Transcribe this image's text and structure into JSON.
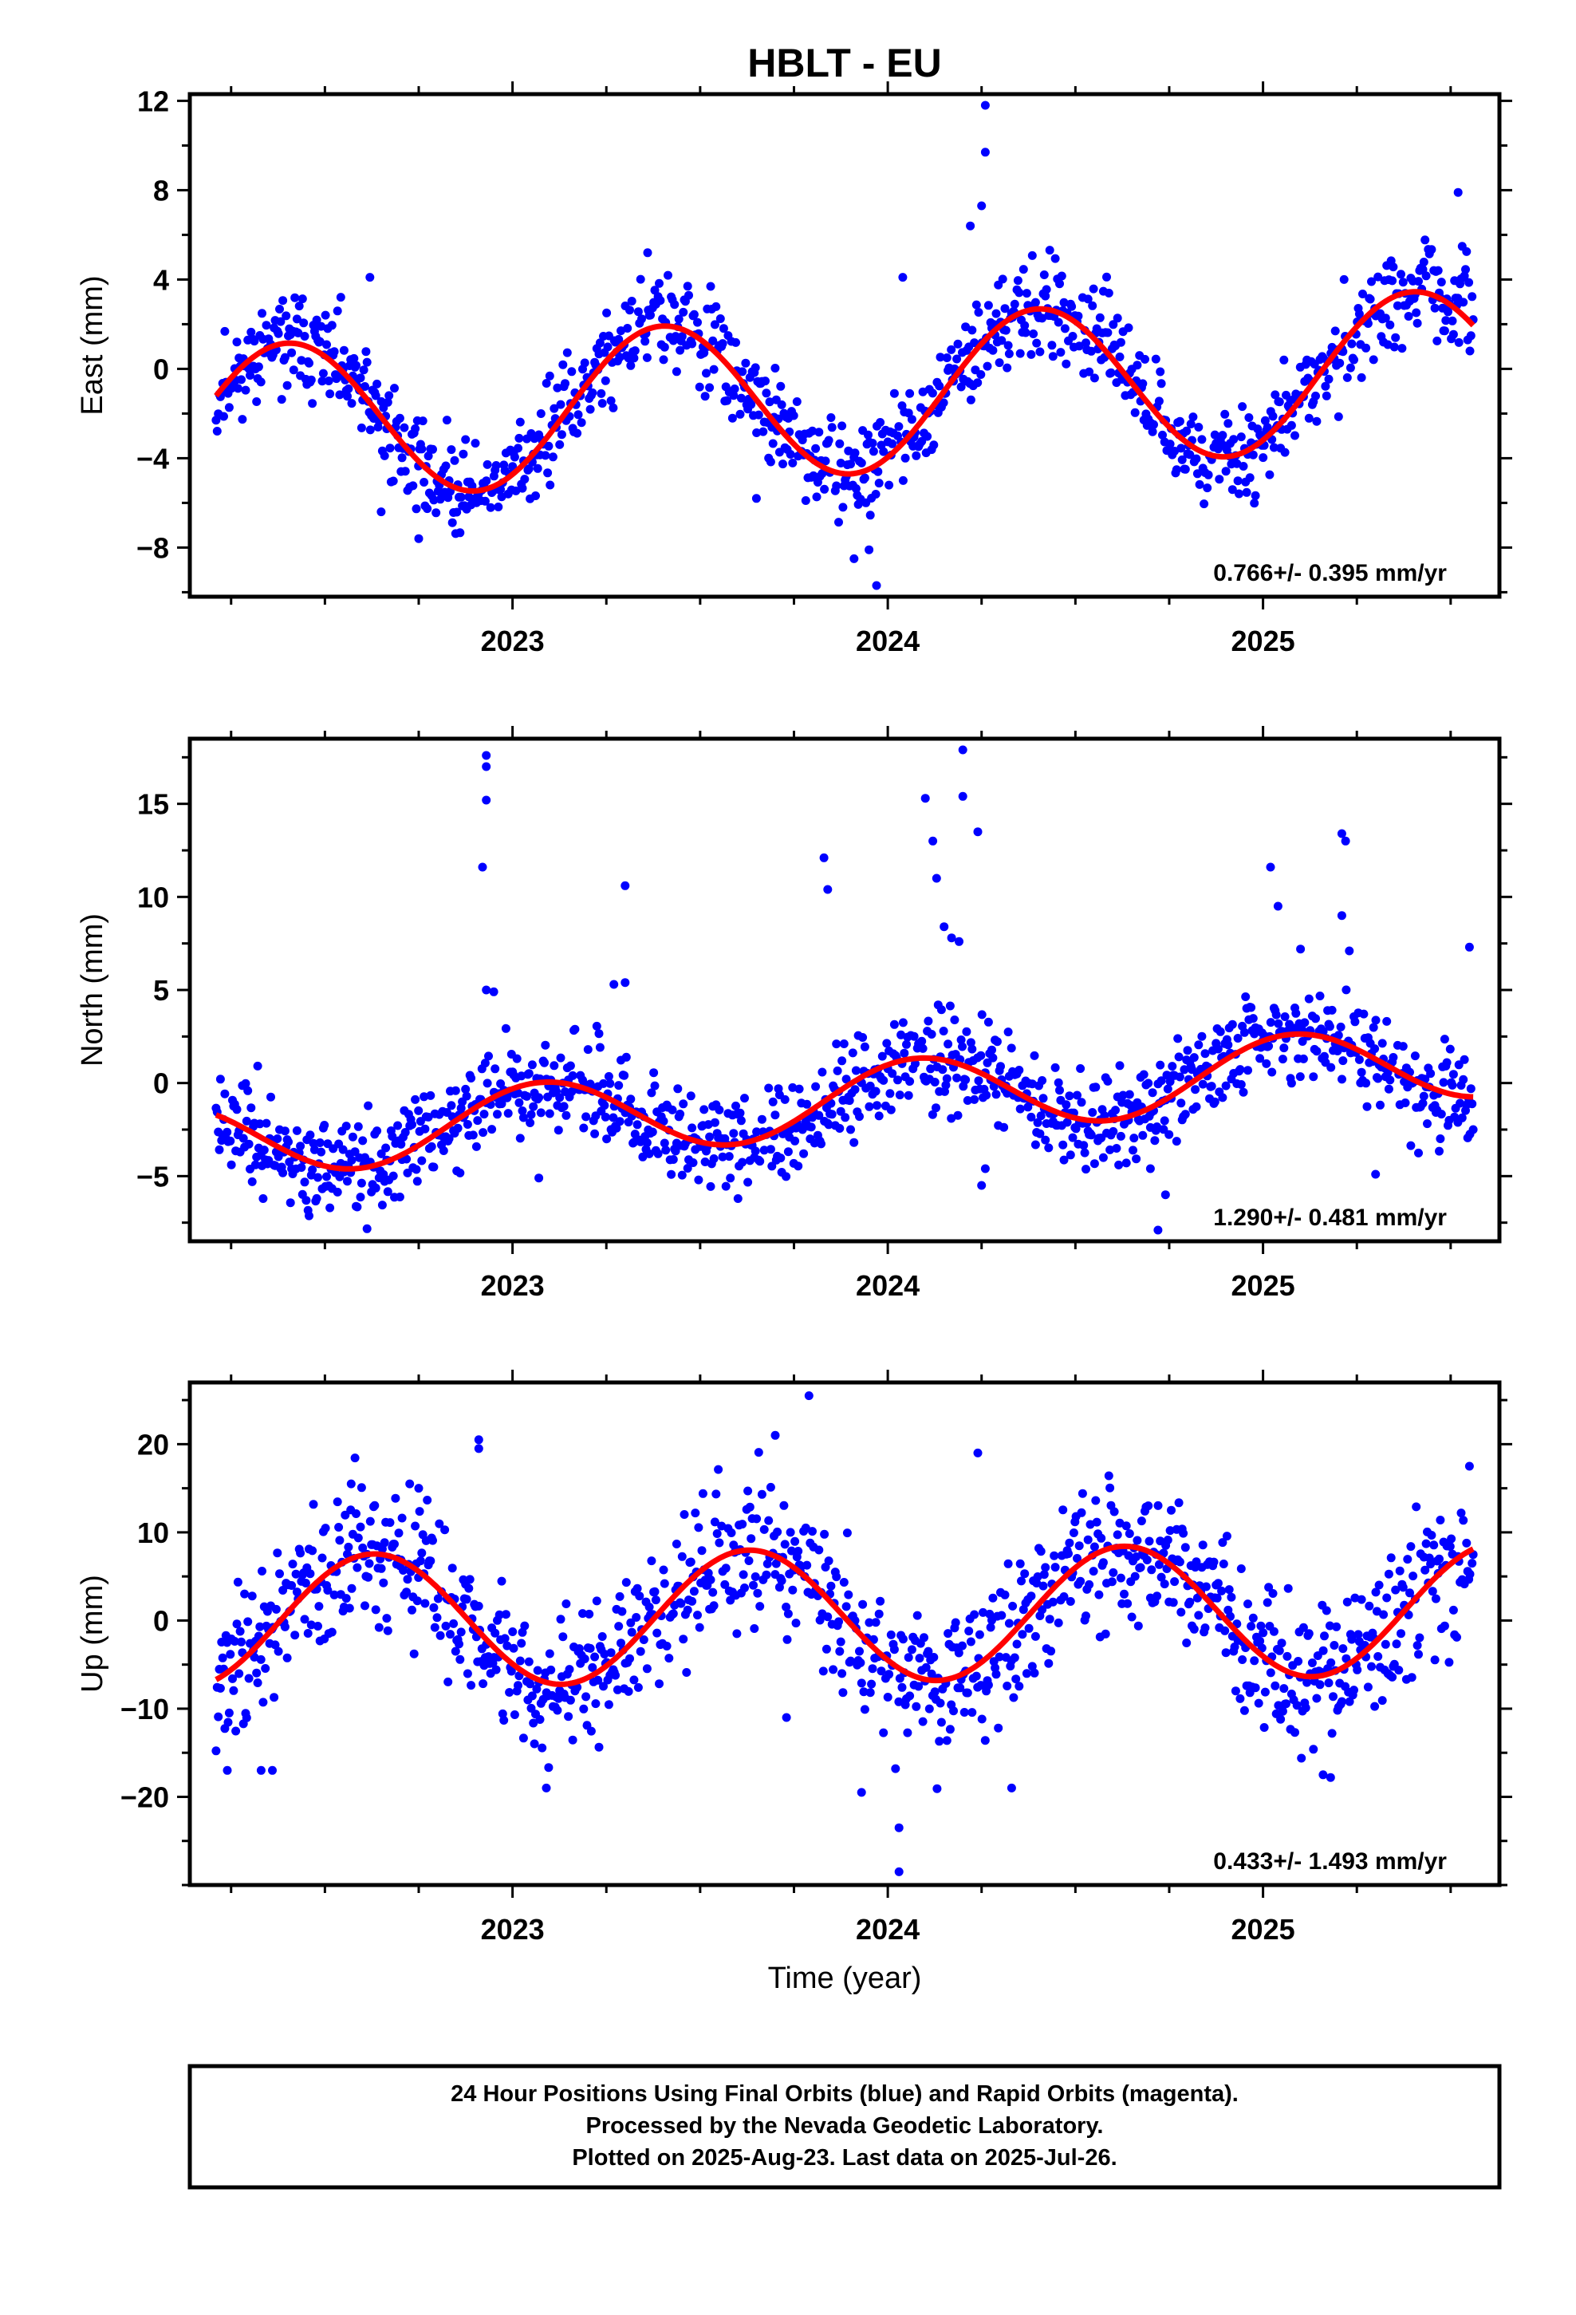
{
  "title": "HBLT - EU",
  "xlabel": "Time (year)",
  "footer_lines": [
    "24 Hour Positions Using Final Orbits (blue) and Rapid Orbits (magenta).",
    "Processed by the Nevada Geodetic Laboratory.",
    "Plotted on 2025-Aug-23. Last data on 2025-Jul-26."
  ],
  "colors": {
    "points": "#0000ff",
    "fit": "#ff0000",
    "frame": "#000000"
  },
  "chart_data": [
    {
      "type": "scatter",
      "ylabel": "East (mm)",
      "rate_label": "0.766+/- 0.395 mm/yr",
      "xlim": [
        2022.14,
        2025.63
      ],
      "ylim": [
        -10.2,
        12.3
      ],
      "x_ticks": [
        2023,
        2024,
        2025
      ],
      "y_ticks": [
        -8,
        -4,
        0,
        4,
        8,
        12
      ],
      "series": [
        {
          "kind": "points",
          "seed": 11,
          "x_start": 2022.21,
          "x_end": 2025.56,
          "trend": 0.766,
          "amp": 3.5,
          "period": 1.0,
          "phase_peak": 2022.4,
          "offset": -1.2,
          "noise": 1.1,
          "outliers": [
            [
              2024.26,
              11.8
            ],
            [
              2024.26,
              9.7
            ],
            [
              2024.25,
              7.3
            ],
            [
              2024.22,
              6.4
            ],
            [
              2023.91,
              -8.5
            ],
            [
              2023.97,
              -9.7
            ],
            [
              2023.95,
              -8.1
            ],
            [
              2022.75,
              -7.6
            ],
            [
              2022.65,
              -6.4
            ],
            [
              2023.65,
              -5.8
            ],
            [
              2025.52,
              7.9
            ],
            [
              2023.1,
              -5.2
            ],
            [
              2024.04,
              4.1
            ],
            [
              2022.62,
              4.1
            ],
            [
              2023.36,
              5.2
            ]
          ]
        },
        {
          "kind": "fit",
          "x_start": 2022.21,
          "x_end": 2025.56,
          "trend": 0.766,
          "amp": 3.5,
          "period": 1.0,
          "phase_peak": 2022.4,
          "offset": -1.2
        }
      ]
    },
    {
      "type": "scatter",
      "ylabel": "North (mm)",
      "rate_label": "1.290+/- 0.481 mm/yr",
      "xlim": [
        2022.14,
        2025.63
      ],
      "ylim": [
        -8.5,
        18.5
      ],
      "x_ticks": [
        2023,
        2024,
        2025
      ],
      "y_ticks": [
        -5,
        0,
        5,
        10,
        15
      ],
      "series": [
        {
          "kind": "points",
          "seed": 23,
          "x_start": 2022.21,
          "x_end": 2025.56,
          "trend": 1.29,
          "amp": 2.0,
          "period": 1.0,
          "phase_peak": 2023.08,
          "offset": -0.9,
          "noise": 1.3,
          "outliers": [
            [
              2022.93,
              17.6
            ],
            [
              2022.93,
              17.0
            ],
            [
              2022.93,
              15.2
            ],
            [
              2022.92,
              11.6
            ],
            [
              2022.93,
              5.0
            ],
            [
              2022.95,
              4.9
            ],
            [
              2023.3,
              10.6
            ],
            [
              2023.3,
              5.4
            ],
            [
              2023.27,
              5.3
            ],
            [
              2023.83,
              12.1
            ],
            [
              2023.84,
              10.4
            ],
            [
              2024.1,
              15.3
            ],
            [
              2024.12,
              13.0
            ],
            [
              2024.13,
              11.0
            ],
            [
              2024.2,
              17.9
            ],
            [
              2024.2,
              15.4
            ],
            [
              2024.24,
              13.5
            ],
            [
              2024.15,
              8.4
            ],
            [
              2024.17,
              7.8
            ],
            [
              2024.19,
              7.6
            ],
            [
              2024.25,
              -5.5
            ],
            [
              2024.26,
              -4.6
            ],
            [
              2025.02,
              11.6
            ],
            [
              2025.04,
              9.5
            ],
            [
              2025.1,
              7.2
            ],
            [
              2025.21,
              13.4
            ],
            [
              2025.22,
              13.0
            ],
            [
              2025.21,
              9.0
            ],
            [
              2025.23,
              7.1
            ],
            [
              2024.72,
              -7.9
            ],
            [
              2024.74,
              -6.0
            ],
            [
              2024.7,
              -4.6
            ],
            [
              2025.3,
              -4.9
            ],
            [
              2025.55,
              7.3
            ],
            [
              2023.07,
              -5.1
            ],
            [
              2022.45,
              -6.3
            ]
          ]
        },
        {
          "kind": "fit",
          "x_start": 2022.21,
          "x_end": 2025.56,
          "trend": 1.29,
          "amp": 2.0,
          "period": 1.0,
          "phase_peak": 2023.08,
          "offset": -0.9
        }
      ]
    },
    {
      "type": "scatter",
      "ylabel": "Up (mm)",
      "rate_label": "0.433+/- 1.493 mm/yr",
      "xlim": [
        2022.14,
        2025.63
      ],
      "ylim": [
        -30,
        27
      ],
      "x_ticks": [
        2023,
        2024,
        2025
      ],
      "y_ticks": [
        -20,
        -10,
        0,
        10,
        20
      ],
      "series": [
        {
          "kind": "points",
          "seed": 37,
          "x_start": 2022.21,
          "x_end": 2025.56,
          "trend": 0.433,
          "amp": 7.5,
          "period": 1.0,
          "phase_peak": 2022.63,
          "offset": 0.6,
          "noise": 4.2,
          "outliers": [
            [
              2023.79,
              25.5
            ],
            [
              2024.03,
              -28.5
            ],
            [
              2024.03,
              -23.5
            ],
            [
              2022.91,
              20.5
            ],
            [
              2022.91,
              19.5
            ],
            [
              2024.24,
              19.0
            ],
            [
              2023.7,
              21.0
            ],
            [
              2022.24,
              -17.0
            ],
            [
              2022.33,
              -17.0
            ],
            [
              2022.36,
              -17.0
            ],
            [
              2023.09,
              -19.0
            ],
            [
              2025.16,
              -17.5
            ],
            [
              2025.18,
              -17.8
            ],
            [
              2023.93,
              -19.5
            ],
            [
              2024.33,
              -19.0
            ],
            [
              2025.55,
              17.5
            ],
            [
              2022.57,
              15.5
            ],
            [
              2022.75,
              15.0
            ],
            [
              2023.73,
              -11.0
            ]
          ]
        },
        {
          "kind": "fit",
          "x_start": 2022.21,
          "x_end": 2025.56,
          "trend": 0.433,
          "amp": 7.5,
          "period": 1.0,
          "phase_peak": 2022.63,
          "offset": 0.6
        }
      ]
    }
  ]
}
